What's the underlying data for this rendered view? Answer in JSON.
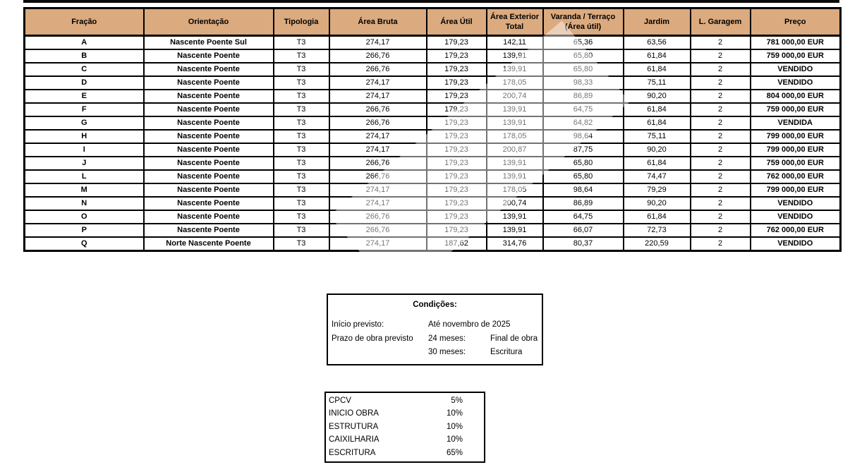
{
  "colors": {
    "header_bg": "#dbaa7e",
    "border": "#000000",
    "text": "#000000"
  },
  "table": {
    "headers": [
      "Fração",
      "Orientação",
      "Tipologia",
      "Área Bruta",
      "Área Útil",
      "Área Exterior\nTotal",
      "Varanda / Terraço\n(Área útil)",
      "Jardim",
      "L. Garagem",
      "Preço"
    ],
    "rows": [
      {
        "fracao": "A",
        "orientacao": "Nascente Poente Sul",
        "tipologia": "T3",
        "area_bruta": "274,17",
        "area_util": "179,23",
        "area_exterior": "142,11",
        "varanda": "65,36",
        "jardim": "63,56",
        "garagem": "2",
        "preco": "781 000,00 EUR"
      },
      {
        "fracao": "B",
        "orientacao": "Nascente Poente",
        "tipologia": "T3",
        "area_bruta": "266,76",
        "area_util": "179,23",
        "area_exterior": "139,91",
        "varanda": "65,80",
        "jardim": "61,84",
        "garagem": "2",
        "preco": "759 000,00 EUR"
      },
      {
        "fracao": "C",
        "orientacao": "Nascente Poente",
        "tipologia": "T3",
        "area_bruta": "266,76",
        "area_util": "179,23",
        "area_exterior": "139,91",
        "varanda": "65,80",
        "jardim": "61,84",
        "garagem": "2",
        "preco": "VENDIDO"
      },
      {
        "fracao": "D",
        "orientacao": "Nascente Poente",
        "tipologia": "T3",
        "area_bruta": "274,17",
        "area_util": "179,23",
        "area_exterior": "178,05",
        "varanda": "98,33",
        "jardim": "75,11",
        "garagem": "2",
        "preco": "VENDIDO"
      },
      {
        "fracao": "E",
        "orientacao": "Nascente Poente",
        "tipologia": "T3",
        "area_bruta": "274,17",
        "area_util": "179,23",
        "area_exterior": "200,74",
        "varanda": "86,89",
        "jardim": "90,20",
        "garagem": "2",
        "preco": "804 000,00 EUR"
      },
      {
        "fracao": "F",
        "orientacao": "Nascente Poente",
        "tipologia": "T3",
        "area_bruta": "266,76",
        "area_util": "179,23",
        "area_exterior": "139,91",
        "varanda": "64,75",
        "jardim": "61,84",
        "garagem": "2",
        "preco": "759 000,00 EUR"
      },
      {
        "fracao": "G",
        "orientacao": "Nascente Poente",
        "tipologia": "T3",
        "area_bruta": "266,76",
        "area_util": "179,23",
        "area_exterior": "139,91",
        "varanda": "64,82",
        "jardim": "61,84",
        "garagem": "2",
        "preco": "VENDIDA"
      },
      {
        "fracao": "H",
        "orientacao": "Nascente Poente",
        "tipologia": "T3",
        "area_bruta": "274,17",
        "area_util": "179,23",
        "area_exterior": "178,05",
        "varanda": "98,64",
        "jardim": "75,11",
        "garagem": "2",
        "preco": "799 000,00 EUR"
      },
      {
        "fracao": "I",
        "orientacao": "Nascente Poente",
        "tipologia": "T3",
        "area_bruta": "274,17",
        "area_util": "179,23",
        "area_exterior": "200,87",
        "varanda": "87,75",
        "jardim": "90,20",
        "garagem": "2",
        "preco": "799 000,00 EUR"
      },
      {
        "fracao": "J",
        "orientacao": "Nascente Poente",
        "tipologia": "T3",
        "area_bruta": "266,76",
        "area_util": "179,23",
        "area_exterior": "139,91",
        "varanda": "65,80",
        "jardim": "61,84",
        "garagem": "2",
        "preco": "759 000,00 EUR"
      },
      {
        "fracao": "L",
        "orientacao": "Nascente Poente",
        "tipologia": "T3",
        "area_bruta": "266,76",
        "area_util": "179,23",
        "area_exterior": "139,91",
        "varanda": "65,80",
        "jardim": "74,47",
        "garagem": "2",
        "preco": "762 000,00 EUR"
      },
      {
        "fracao": "M",
        "orientacao": "Nascente Poente",
        "tipologia": "T3",
        "area_bruta": "274,17",
        "area_util": "179,23",
        "area_exterior": "178,05",
        "varanda": "98,64",
        "jardim": "79,29",
        "garagem": "2",
        "preco": "799 000,00 EUR"
      },
      {
        "fracao": "N",
        "orientacao": "Nascente Poente",
        "tipologia": "T3",
        "area_bruta": "274,17",
        "area_util": "179,23",
        "area_exterior": "200,74",
        "varanda": "86,89",
        "jardim": "90,20",
        "garagem": "2",
        "preco": "VENDIDO"
      },
      {
        "fracao": "O",
        "orientacao": "Nascente Poente",
        "tipologia": "T3",
        "area_bruta": "266,76",
        "area_util": "179,23",
        "area_exterior": "139,91",
        "varanda": "64,75",
        "jardim": "61,84",
        "garagem": "2",
        "preco": "VENDIDO"
      },
      {
        "fracao": "P",
        "orientacao": "Nascente Poente",
        "tipologia": "T3",
        "area_bruta": "266,76",
        "area_util": "179,23",
        "area_exterior": "139,91",
        "varanda": "66,07",
        "jardim": "72,73",
        "garagem": "2",
        "preco": "762 000,00 EUR"
      },
      {
        "fracao": "Q",
        "orientacao": "Norte Nascente Poente",
        "tipologia": "T3",
        "area_bruta": "274,17",
        "area_util": "187,62",
        "area_exterior": "314,76",
        "varanda": "80,37",
        "jardim": "220,59",
        "garagem": "2",
        "preco": "VENDIDO"
      }
    ]
  },
  "conditions": {
    "title": "Condições:",
    "inicio_label": "Início previsto:",
    "inicio_value": "Até novembro de 2025",
    "prazo_label": "Prazo de obra previsto",
    "prazo_24_key": "24 meses:",
    "prazo_24_value": "Final de obra",
    "prazo_30_key": "30 meses:",
    "prazo_30_value": "Escritura"
  },
  "payment": {
    "items": [
      {
        "label": "CPCV",
        "value": "5%"
      },
      {
        "label": "INICIO OBRA",
        "value": "10%"
      },
      {
        "label": "ESTRUTURA",
        "value": "10%"
      },
      {
        "label": "CAIXILHARIA",
        "value": "10%"
      },
      {
        "label": "ESCRITURA",
        "value": "65%"
      }
    ]
  }
}
